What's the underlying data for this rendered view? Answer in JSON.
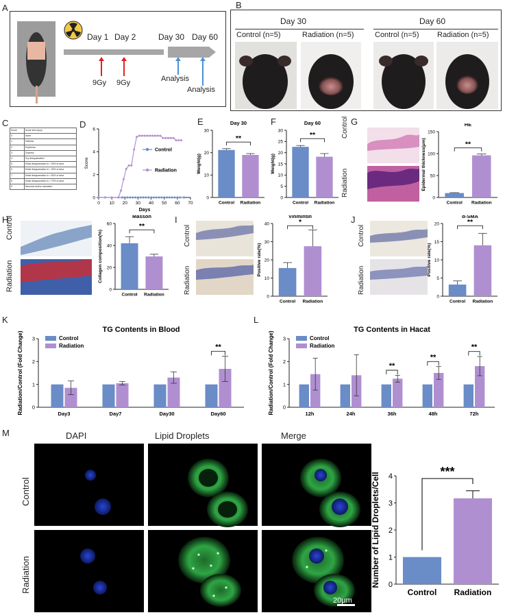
{
  "panel_letters": [
    "A",
    "B",
    "C",
    "D",
    "E",
    "F",
    "G",
    "H",
    "I",
    "J",
    "K",
    "L",
    "M"
  ],
  "panelA": {
    "timeline": [
      "Day 1",
      "Day 2",
      "Day 30",
      "Day 60"
    ],
    "dose": [
      "9Gy",
      "9Gy"
    ],
    "analysis": [
      "Analysis",
      "Analysis"
    ]
  },
  "panelB": {
    "days": [
      "Day 30",
      "Day 60"
    ],
    "groups": [
      "Control (n=5)",
      "Radiation (n=5)",
      "Control (n=5)",
      "Radiation (n=5)"
    ]
  },
  "panelC": {
    "header": [
      "Score",
      "Acute skin injury"
    ],
    "rows": [
      [
        "0",
        "None"
      ],
      [
        "1",
        "Hairloss"
      ],
      [
        "2",
        "Erythema"
      ],
      [
        "3",
        "Dryness"
      ],
      [
        "4",
        "Dry desquamation"
      ],
      [
        "5",
        "Moist desquamation  in < 30% of area"
      ],
      [
        "6",
        "Moist desquamation  in > 30% of area"
      ],
      [
        "7",
        "Moist desquamation  in < 50% of area"
      ],
      [
        "8",
        "Moist desquamation  in > 70% of area"
      ],
      [
        "9",
        "Necrosis and/or ulceration"
      ]
    ]
  },
  "panelG_labels": [
    "Control",
    "Radiation"
  ],
  "panelH_labels": [
    "Control",
    "Radiation"
  ],
  "panelI_labels": [
    "Control",
    "Radiation"
  ],
  "panelJ_labels": [
    "Control",
    "Radiation"
  ],
  "panelM": {
    "columns": [
      "DAPI",
      "Lipid Droplets",
      "Merge"
    ],
    "rows": [
      "Control",
      "Radiation"
    ],
    "scale": "20μm"
  },
  "chart_data": [
    {
      "id": "D",
      "type": "line",
      "xlabel": "Days",
      "ylabel": "Score",
      "xlim": [
        0,
        70
      ],
      "ylim": [
        0,
        6
      ],
      "xticks": [
        "0",
        "10",
        "20",
        "30",
        "40",
        "50",
        "60",
        "70"
      ],
      "yticks": [
        "0",
        "2",
        "4",
        "6"
      ],
      "series": [
        {
          "name": "Control",
          "color": "#6a8cc7",
          "x": [
            0,
            5,
            10,
            15,
            18,
            20,
            22,
            24,
            26,
            28,
            30,
            32,
            34,
            36,
            38,
            40,
            42,
            44,
            46,
            48,
            50,
            52,
            54,
            56,
            58,
            60,
            62,
            65
          ],
          "y": [
            0,
            0,
            0,
            0,
            0,
            0,
            0,
            0,
            0,
            0,
            0,
            0,
            0,
            0,
            0,
            0,
            0,
            0,
            0,
            0,
            0,
            0,
            0,
            0,
            0,
            0,
            0,
            0
          ]
        },
        {
          "name": "Radiation",
          "color": "#b08fd1",
          "x": [
            0,
            5,
            10,
            15,
            17,
            19,
            21,
            23,
            25,
            27,
            29,
            31,
            33,
            35,
            37,
            39,
            41,
            43,
            45,
            47,
            49,
            51,
            53,
            55,
            57,
            59,
            61,
            63
          ],
          "y": [
            0,
            0,
            0,
            0,
            0.6,
            1.6,
            2.5,
            2.8,
            2.8,
            4.2,
            5.3,
            5.4,
            5.4,
            5.4,
            5.4,
            5.4,
            5.4,
            5.4,
            5.4,
            5.4,
            5.2,
            5.2,
            5.2,
            5.2,
            5.2,
            5.0,
            5.0,
            5.0
          ]
        }
      ]
    },
    {
      "id": "E",
      "type": "bar",
      "title": "Day 30",
      "ylabel": "Weight(g)",
      "ylim": [
        0,
        30
      ],
      "yticks": [
        "0",
        "10",
        "20",
        "30"
      ],
      "categories": [
        "Control",
        "Radiation"
      ],
      "values": [
        21.2,
        19.0
      ],
      "errors": [
        0.6,
        0.6
      ],
      "colors": [
        "#6a8cc7",
        "#b08fd1"
      ],
      "sig": "**"
    },
    {
      "id": "F",
      "type": "bar",
      "title": "Day 60",
      "ylabel": "Weight(g)",
      "ylim": [
        0,
        30
      ],
      "yticks": [
        "0",
        "5",
        "10",
        "15",
        "20",
        "25",
        "30"
      ],
      "categories": [
        "Control",
        "Radiation"
      ],
      "values": [
        22.6,
        18.2
      ],
      "errors": [
        0.6,
        1.4
      ],
      "colors": [
        "#6a8cc7",
        "#b08fd1"
      ],
      "sig": "**"
    },
    {
      "id": "G",
      "type": "bar",
      "title": "HE",
      "ylabel": "Epidermal thickness(μm)",
      "ylim": [
        0,
        150
      ],
      "yticks": [
        "0",
        "50",
        "100",
        "150"
      ],
      "categories": [
        "Control",
        "Radiation"
      ],
      "values": [
        10,
        96
      ],
      "errors": [
        1,
        3
      ],
      "colors": [
        "#6a8cc7",
        "#b08fd1"
      ],
      "sig": "**"
    },
    {
      "id": "H",
      "type": "bar",
      "title": "Masson",
      "ylabel": "Collagen composition(%)",
      "ylim": [
        0,
        60
      ],
      "yticks": [
        "0",
        "20",
        "40",
        "60"
      ],
      "categories": [
        "Control",
        "Radiation"
      ],
      "values": [
        42,
        30
      ],
      "errors": [
        6,
        2
      ],
      "colors": [
        "#6a8cc7",
        "#b08fd1"
      ],
      "sig": "**"
    },
    {
      "id": "I",
      "type": "bar",
      "title": "Vinmintin",
      "ylabel": "Positive rate(%)",
      "ylim": [
        0,
        40
      ],
      "yticks": [
        "0",
        "10",
        "20",
        "30",
        "40"
      ],
      "categories": [
        "Control",
        "Radiation"
      ],
      "values": [
        15.5,
        27.5
      ],
      "errors": [
        3,
        9
      ],
      "colors": [
        "#6a8cc7",
        "#b08fd1"
      ],
      "sig": "*"
    },
    {
      "id": "J",
      "type": "bar",
      "title": "α-SMA",
      "ylabel": "Positive rate(%)",
      "ylim": [
        0,
        20
      ],
      "yticks": [
        "0",
        "5",
        "10",
        "15",
        "20"
      ],
      "categories": [
        "Control",
        "Radiation"
      ],
      "values": [
        3.2,
        14
      ],
      "errors": [
        1,
        3.3
      ],
      "colors": [
        "#6a8cc7",
        "#b08fd1"
      ],
      "sig": "**"
    },
    {
      "id": "K",
      "type": "bar",
      "title": "TG Contents in Blood",
      "ylabel": "Radiation/Control (Fold Change)",
      "ylim": [
        0,
        3
      ],
      "yticks": [
        "0",
        "1",
        "2",
        "3"
      ],
      "categories": [
        "Day3",
        "Day7",
        "Day30",
        "Day60"
      ],
      "series": [
        {
          "name": "Control",
          "color": "#6a8cc7",
          "values": [
            1,
            1,
            1,
            1
          ],
          "errors": [
            0,
            0,
            0,
            0
          ]
        },
        {
          "name": "Radiation",
          "color": "#b08fd1",
          "values": [
            0.85,
            1.05,
            1.3,
            1.68
          ],
          "errors": [
            0.3,
            0.08,
            0.25,
            0.55
          ]
        }
      ],
      "sig": [
        {
          "category": "Day60",
          "label": "**"
        }
      ]
    },
    {
      "id": "L",
      "type": "bar",
      "title": "TG Contents in Hacat",
      "ylabel": "Radiation/Control (Fold Change)",
      "ylim": [
        0,
        3
      ],
      "yticks": [
        "0",
        "1",
        "2",
        "3"
      ],
      "categories": [
        "12h",
        "24h",
        "36h",
        "48h",
        "72h"
      ],
      "series": [
        {
          "name": "Control",
          "color": "#6a8cc7",
          "values": [
            1,
            1,
            1,
            1,
            1
          ],
          "errors": [
            0,
            0,
            0,
            0,
            0
          ]
        },
        {
          "name": "Radiation",
          "color": "#b08fd1",
          "values": [
            1.45,
            1.4,
            1.25,
            1.5,
            1.8
          ],
          "errors": [
            0.7,
            0.9,
            0.15,
            0.28,
            0.42
          ]
        }
      ],
      "sig": [
        {
          "category": "36h",
          "label": "**"
        },
        {
          "category": "48h",
          "label": "**"
        },
        {
          "category": "72h",
          "label": "**"
        }
      ]
    },
    {
      "id": "M",
      "type": "bar",
      "ylabel": "Number of Lipid Droplets/Cell",
      "ylim": [
        0,
        4
      ],
      "yticks": [
        "0",
        "1",
        "2",
        "3",
        "4"
      ],
      "categories": [
        "Control",
        "Radiation"
      ],
      "values": [
        1.0,
        3.17
      ],
      "errors": [
        0,
        0.28
      ],
      "colors": [
        "#6a8cc7",
        "#b08fd1"
      ],
      "sig": "***"
    }
  ]
}
